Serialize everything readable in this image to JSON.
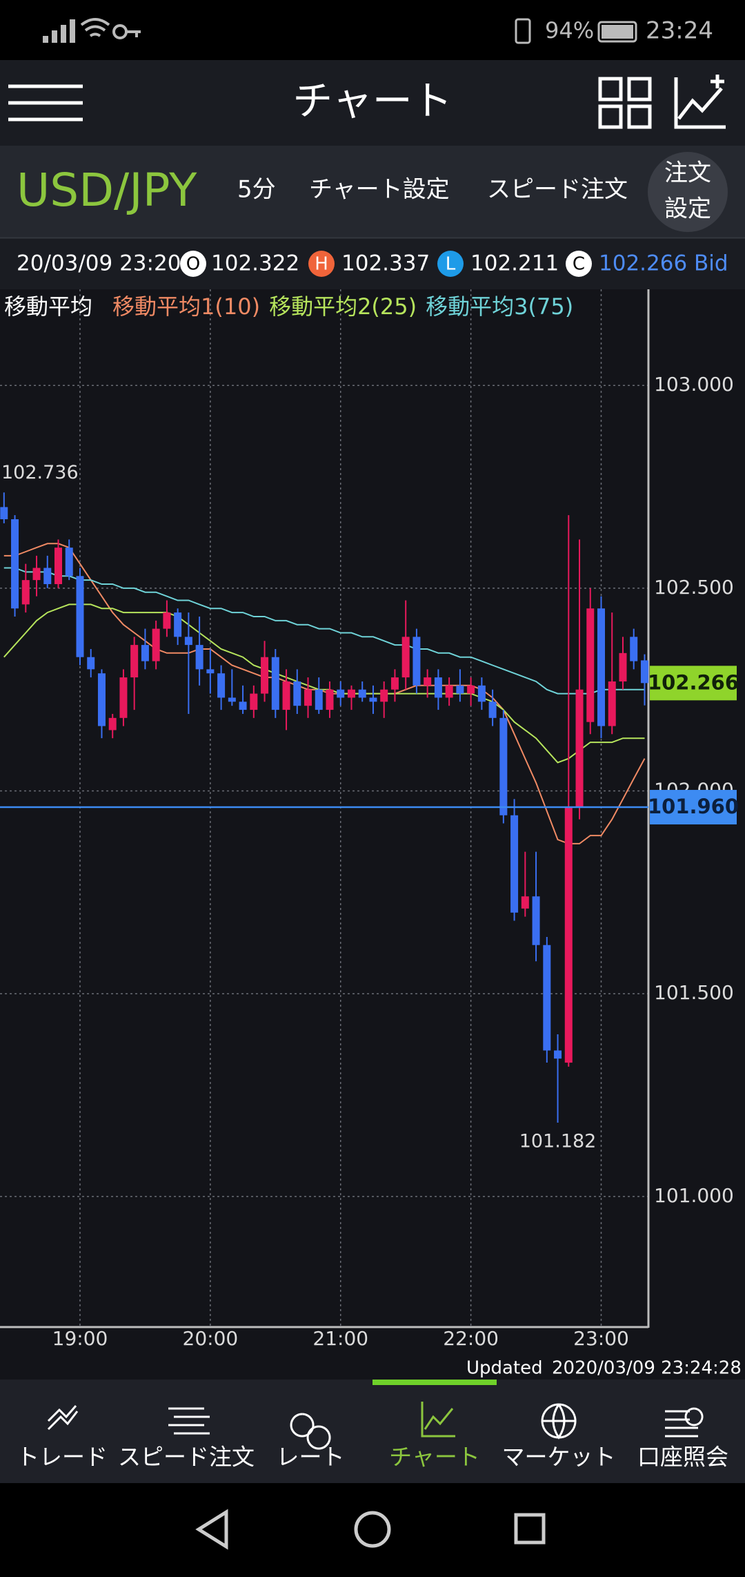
{
  "status_bar": {
    "battery": "94%",
    "time": "23:24"
  },
  "header": {
    "title": "チャート"
  },
  "toolbar": {
    "pair": "USD/JPY",
    "interval": "5分",
    "chart_settings": "チャート設定",
    "speed_order": "スピード注文",
    "order_settings": [
      "注文",
      "設定"
    ]
  },
  "ohlc": {
    "datetime": "20/03/09 23:20",
    "open_tag": "O",
    "open": 102.322,
    "high_tag": "H",
    "high": 102.337,
    "low_tag": "L",
    "low": 102.211,
    "close_tag": "C",
    "close": 102.266,
    "side": "Bid"
  },
  "chart_data": {
    "type": "candlestick",
    "legend_title": "移動平均",
    "x": [
      "18:25",
      "18:30",
      "18:35",
      "18:40",
      "18:45",
      "18:50",
      "18:55",
      "19:00",
      "19:05",
      "19:10",
      "19:15",
      "19:20",
      "19:25",
      "19:30",
      "19:35",
      "19:40",
      "19:45",
      "19:50",
      "19:55",
      "20:00",
      "20:05",
      "20:10",
      "20:15",
      "20:20",
      "20:25",
      "20:30",
      "20:35",
      "20:40",
      "20:45",
      "20:50",
      "20:55",
      "21:00",
      "21:05",
      "21:10",
      "21:15",
      "21:20",
      "21:25",
      "21:30",
      "21:35",
      "21:40",
      "21:45",
      "21:50",
      "21:55",
      "22:00",
      "22:05",
      "22:10",
      "22:15",
      "22:20",
      "22:25",
      "22:30",
      "22:35",
      "22:40",
      "22:45",
      "22:50",
      "22:55",
      "23:00",
      "23:05",
      "23:10",
      "23:15",
      "23:20"
    ],
    "open": [
      102.7,
      102.67,
      102.46,
      102.52,
      102.55,
      102.51,
      102.6,
      102.53,
      102.33,
      102.29,
      102.15,
      102.18,
      102.28,
      102.36,
      102.32,
      102.4,
      102.44,
      102.38,
      102.36,
      102.3,
      102.29,
      102.23,
      102.22,
      102.2,
      102.24,
      102.33,
      102.2,
      102.27,
      102.21,
      102.25,
      102.2,
      102.25,
      102.23,
      102.25,
      102.23,
      102.22,
      102.25,
      102.28,
      102.38,
      102.26,
      102.28,
      102.23,
      102.26,
      102.24,
      102.26,
      102.22,
      102.18,
      101.94,
      101.71,
      101.74,
      101.62,
      101.36,
      101.33,
      101.96,
      102.17,
      102.45,
      102.16,
      102.27,
      102.38,
      102.322
    ],
    "high": [
      102.736,
      102.68,
      102.56,
      102.58,
      102.58,
      102.62,
      102.62,
      102.55,
      102.35,
      102.3,
      102.19,
      102.3,
      102.38,
      102.4,
      102.42,
      102.47,
      102.45,
      102.44,
      102.43,
      102.35,
      102.31,
      102.3,
      102.26,
      102.26,
      102.37,
      102.35,
      102.3,
      102.3,
      102.28,
      102.28,
      102.27,
      102.27,
      102.26,
      102.27,
      102.26,
      102.27,
      102.3,
      102.47,
      102.4,
      102.3,
      102.3,
      102.28,
      102.3,
      102.28,
      102.28,
      102.25,
      102.2,
      101.98,
      101.85,
      101.85,
      101.64,
      101.4,
      102.68,
      102.62,
      102.5,
      102.48,
      102.44,
      102.38,
      102.4,
      102.337
    ],
    "low": [
      102.66,
      102.43,
      102.44,
      102.48,
      102.5,
      102.5,
      102.52,
      102.31,
      102.28,
      102.13,
      102.13,
      102.16,
      102.2,
      102.3,
      102.3,
      102.38,
      102.36,
      102.19,
      102.26,
      102.24,
      102.2,
      102.21,
      102.19,
      102.18,
      102.22,
      102.18,
      102.15,
      102.19,
      102.18,
      102.19,
      102.18,
      102.21,
      102.2,
      102.22,
      102.19,
      102.18,
      102.22,
      102.25,
      102.24,
      102.23,
      102.2,
      102.21,
      102.22,
      102.21,
      102.2,
      102.16,
      101.92,
      101.68,
      101.69,
      101.58,
      101.33,
      101.182,
      101.32,
      101.93,
      102.14,
      102.13,
      102.14,
      102.25,
      102.3,
      102.211
    ],
    "close": [
      102.67,
      102.45,
      102.52,
      102.55,
      102.51,
      102.6,
      102.53,
      102.33,
      102.3,
      102.16,
      102.18,
      102.28,
      102.36,
      102.32,
      102.4,
      102.44,
      102.38,
      102.36,
      102.3,
      102.29,
      102.23,
      102.22,
      102.2,
      102.24,
      102.33,
      102.2,
      102.27,
      102.21,
      102.25,
      102.2,
      102.25,
      102.23,
      102.25,
      102.23,
      102.22,
      102.25,
      102.28,
      102.38,
      102.26,
      102.28,
      102.23,
      102.26,
      102.24,
      102.26,
      102.22,
      102.18,
      101.94,
      101.7,
      101.74,
      101.62,
      101.36,
      101.34,
      101.96,
      102.25,
      102.45,
      102.16,
      102.27,
      102.34,
      102.32,
      102.266
    ],
    "up_color": "#e8195c",
    "down_color": "#3a6ff2",
    "series": [
      {
        "name": "移動平均1(10)",
        "color": "#f08a64",
        "values": [
          102.58,
          102.58,
          102.59,
          102.6,
          102.61,
          102.61,
          102.6,
          102.56,
          102.52,
          102.48,
          102.44,
          102.41,
          102.39,
          102.37,
          102.35,
          102.34,
          102.34,
          102.34,
          102.35,
          102.35,
          102.33,
          102.31,
          102.3,
          102.29,
          102.28,
          102.28,
          102.27,
          102.26,
          102.25,
          102.25,
          102.24,
          102.24,
          102.24,
          102.24,
          102.24,
          102.24,
          102.24,
          102.25,
          102.26,
          102.26,
          102.26,
          102.26,
          102.26,
          102.26,
          102.25,
          102.23,
          102.2,
          102.14,
          102.08,
          102.02,
          101.95,
          101.88,
          101.87,
          101.87,
          101.89,
          101.89,
          101.93,
          101.98,
          102.03,
          102.08
        ]
      },
      {
        "name": "移動平均2(25)",
        "color": "#b6e45c",
        "values": [
          102.33,
          102.36,
          102.39,
          102.42,
          102.44,
          102.45,
          102.46,
          102.46,
          102.46,
          102.45,
          102.45,
          102.44,
          102.44,
          102.44,
          102.44,
          102.44,
          102.43,
          102.41,
          102.39,
          102.37,
          102.35,
          102.34,
          102.33,
          102.31,
          102.3,
          102.29,
          102.28,
          102.27,
          102.26,
          102.25,
          102.25,
          102.24,
          102.24,
          102.24,
          102.24,
          102.24,
          102.24,
          102.24,
          102.24,
          102.24,
          102.24,
          102.24,
          102.24,
          102.24,
          102.23,
          102.22,
          102.2,
          102.17,
          102.15,
          102.13,
          102.1,
          102.07,
          102.08,
          102.1,
          102.12,
          102.12,
          102.12,
          102.13,
          102.13,
          102.13
        ]
      },
      {
        "name": "移動平均3(75)",
        "color": "#6fd3d8",
        "values": [
          102.55,
          102.55,
          102.54,
          102.54,
          102.54,
          102.53,
          102.53,
          102.52,
          102.52,
          102.51,
          102.51,
          102.5,
          102.5,
          102.49,
          102.49,
          102.48,
          102.47,
          102.47,
          102.46,
          102.45,
          102.45,
          102.44,
          102.44,
          102.43,
          102.43,
          102.42,
          102.42,
          102.41,
          102.41,
          102.4,
          102.4,
          102.39,
          102.39,
          102.38,
          102.38,
          102.37,
          102.36,
          102.36,
          102.35,
          102.35,
          102.34,
          102.34,
          102.33,
          102.33,
          102.32,
          102.31,
          102.3,
          102.29,
          102.28,
          102.27,
          102.25,
          102.24,
          102.24,
          102.24,
          102.24,
          102.25,
          102.25,
          102.25,
          102.25,
          102.25
        ]
      }
    ],
    "ylim": [
      100.678,
      103.237
    ],
    "yticks": [
      {
        "value": 101,
        "label": "101.000"
      },
      {
        "value": 101.5,
        "label": "101.500"
      },
      {
        "value": 102,
        "label": "102.000"
      },
      {
        "value": 102.5,
        "label": "102.500"
      },
      {
        "value": 103,
        "label": "103.000"
      }
    ],
    "xticks": [
      "19:00",
      "20:00",
      "21:00",
      "22:00",
      "23:00"
    ],
    "grid": true,
    "high_label": 102.736,
    "low_label": 101.182,
    "last_price": 102.266,
    "last_price_color": "#8fd42b",
    "bid_line": {
      "value": 101.96,
      "label": "101.960"
    },
    "bid_line_color": "#3d8bf2"
  },
  "updated": {
    "label": "Updated",
    "datetime": "2020/03/09 23:24:28"
  },
  "nav": {
    "items": [
      "トレード",
      "スピード注文",
      "レート",
      "チャート",
      "マーケット",
      "口座照会"
    ],
    "active": 3
  }
}
